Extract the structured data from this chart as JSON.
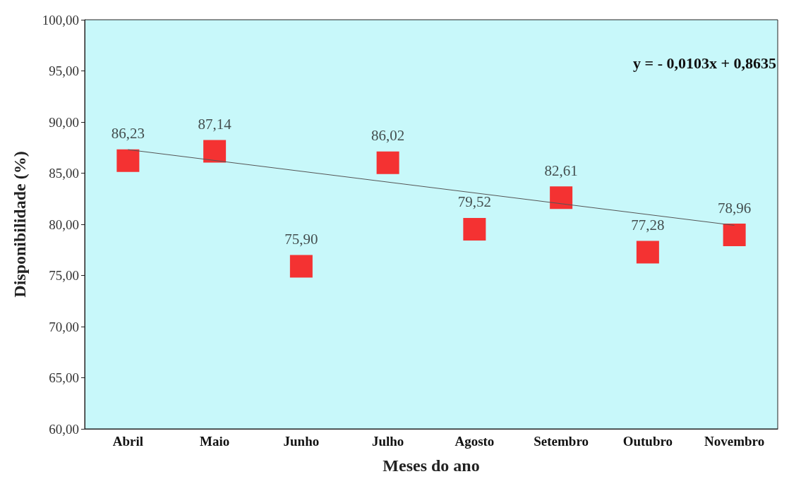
{
  "chart_data": {
    "type": "scatter",
    "xlabel": "Meses do ano",
    "ylabel": "Disponibilidade (%)",
    "categories": [
      "Abril",
      "Maio",
      "Junho",
      "Julho",
      "Agosto",
      "Setembro",
      "Outubro",
      "Novembro"
    ],
    "series": [
      {
        "color": "#ff0000",
        "values": [
          86.23,
          87.14,
          75.9,
          86.02,
          79.52,
          82.61,
          77.28,
          78.96
        ],
        "value_labels": [
          "86,23",
          "87,14",
          "75,90",
          "86,02",
          "79,52",
          "82,61",
          "77,28",
          "78,96"
        ],
        "marker": "square"
      },
      {
        "type": "line",
        "color": "#555555",
        "x": [
          "Abril",
          "Novembro"
        ],
        "values": [
          87.3,
          79.9
        ],
        "marker": "none",
        "line_style": "solid"
      }
    ],
    "ylim": [
      60,
      100
    ],
    "yticks": [
      {
        "value": 60,
        "label": "60,00"
      },
      {
        "value": 65,
        "label": "65,00"
      },
      {
        "value": 70,
        "label": "70,00"
      },
      {
        "value": 75,
        "label": "75,00"
      },
      {
        "value": 80,
        "label": "80,00"
      },
      {
        "value": 85,
        "label": "85,00"
      },
      {
        "value": 90,
        "label": "90,00"
      },
      {
        "value": 95,
        "label": "95,00"
      },
      {
        "value": 100,
        "label": "100,00"
      }
    ],
    "annotations": [
      "y = - 0,0103x + 0,8635"
    ],
    "grid": false
  }
}
